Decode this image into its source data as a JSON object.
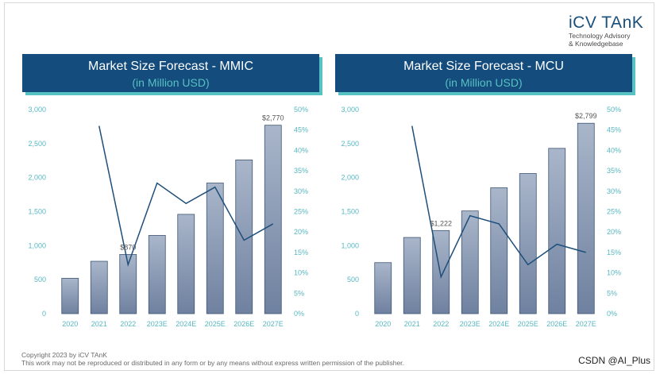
{
  "logo": {
    "brand": "iCV TAnK",
    "tagline_1": "Technology Advisory",
    "tagline_2": "& Knowledgebase"
  },
  "footer": {
    "line_1": "Copyright 2023 by iCV TAnK",
    "line_2": "This work may not be reproduced or distributed in any form or by any means without express written permission of the publisher."
  },
  "watermark": "CSDN @AI_Plus",
  "colors": {
    "title_bg": "#134c7d",
    "accent": "#58c1c2",
    "bar_top": "#a9b6ca",
    "bar_bottom": "#6f81a0",
    "line": "#1f4f7a"
  },
  "chart_data": [
    {
      "type": "bar",
      "title": "Market Size Forecast - MMIC",
      "subtitle": "(in Million USD)",
      "categories": [
        "2020",
        "2021",
        "2022",
        "2023E",
        "2024E",
        "2025E",
        "2026E",
        "2027E"
      ],
      "series": [
        {
          "type": "bar",
          "axis": "left",
          "values": [
            520,
            770,
            870,
            1150,
            1460,
            1920,
            2260,
            2770
          ]
        },
        {
          "type": "line",
          "axis": "right",
          "values": [
            null,
            46,
            12,
            32,
            27,
            31,
            18,
            22
          ]
        }
      ],
      "data_labels": [
        {
          "category": "2022",
          "text": "$870"
        },
        {
          "category": "2027E",
          "text": "$2,770"
        }
      ],
      "ylim_left": [
        0,
        3000
      ],
      "yticks_left": [
        "0",
        "500",
        "1,000",
        "1,500",
        "2,000",
        "2,500",
        "3,000"
      ],
      "ylim_right": [
        0,
        50
      ],
      "yticks_right": [
        "0%",
        "5%",
        "10%",
        "15%",
        "20%",
        "25%",
        "30%",
        "35%",
        "40%",
        "45%",
        "50%"
      ],
      "grid": false
    },
    {
      "type": "bar",
      "title": "Market Size Forecast - MCU",
      "subtitle": "(in Million USD)",
      "categories": [
        "2020",
        "2021",
        "2022",
        "2023E",
        "2024E",
        "2025E",
        "2026E",
        "2027E"
      ],
      "series": [
        {
          "type": "bar",
          "axis": "left",
          "values": [
            750,
            1120,
            1222,
            1510,
            1850,
            2060,
            2430,
            2799
          ]
        },
        {
          "type": "line",
          "axis": "right",
          "values": [
            null,
            46,
            9,
            24,
            22,
            12,
            17,
            15
          ]
        }
      ],
      "data_labels": [
        {
          "category": "2022",
          "text": "$1,222"
        },
        {
          "category": "2027E",
          "text": "$2,799"
        }
      ],
      "ylim_left": [
        0,
        3000
      ],
      "yticks_left": [
        "0",
        "500",
        "1,000",
        "1,500",
        "2,000",
        "2,500",
        "3,000"
      ],
      "ylim_right": [
        0,
        50
      ],
      "yticks_right": [
        "0%",
        "5%",
        "10%",
        "15%",
        "20%",
        "25%",
        "30%",
        "35%",
        "40%",
        "45%",
        "50%"
      ],
      "grid": false
    }
  ]
}
